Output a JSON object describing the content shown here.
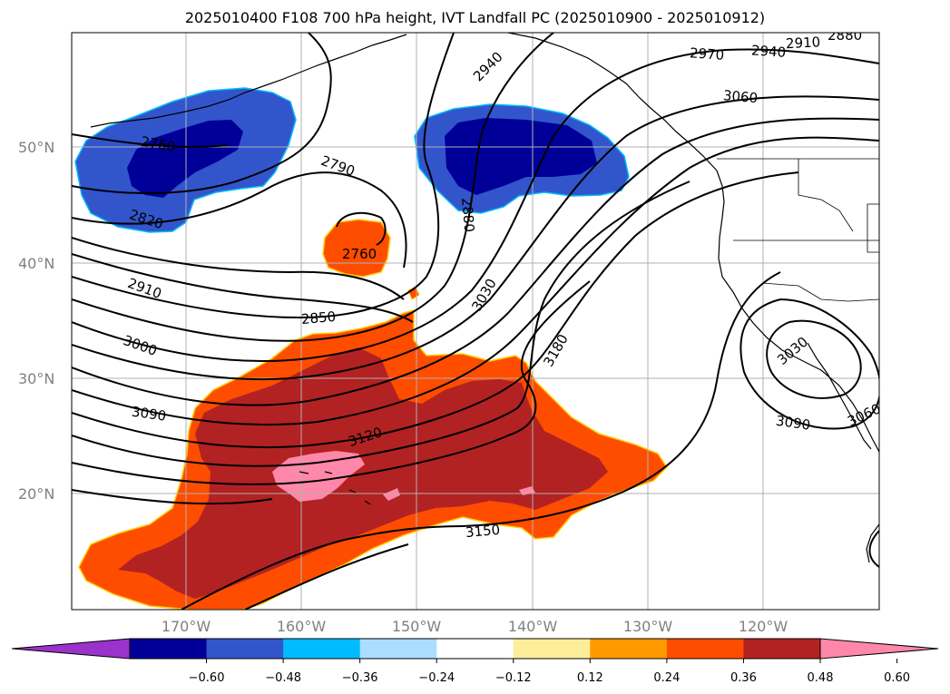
{
  "title": "2025010400 F108 700 hPa height, IVT Landfall PC (2025010900 - 2025010912)",
  "lat_labels": [
    "50°N",
    "40°N",
    "30°N",
    "20°N"
  ],
  "lon_labels": [
    "170°W",
    "160°W",
    "150°W",
    "140°W",
    "130°W",
    "120°W"
  ],
  "contour_labels": [
    "2760",
    "2820",
    "2790",
    "2760",
    "2880",
    "2940",
    "2970",
    "2940",
    "2910",
    "2880",
    "3060",
    "2910",
    "2850",
    "3000",
    "3030",
    "3180",
    "3090",
    "3120",
    "3030",
    "3090",
    "3060",
    "3150"
  ],
  "colorbar": {
    "colors": [
      "#9933cc",
      "#000099",
      "#3355cc",
      "#00bbff",
      "#aaddff",
      "#ffffff",
      "#ffee99",
      "#ff9900",
      "#ff4d00",
      "#b22222",
      "#ff88aa"
    ],
    "ticks": [
      "−0.60",
      "−0.48",
      "−0.36",
      "−0.24",
      "−0.12",
      "0.12",
      "0.24",
      "0.36",
      "0.48",
      "0.60"
    ]
  },
  "colors": {
    "orange": "#ff4d00",
    "firebrick": "#b22222",
    "pink": "#ff88aa",
    "navy": "#000099",
    "royal": "#3355cc",
    "sky": "#00bbff",
    "gold": "#ffcc00"
  }
}
